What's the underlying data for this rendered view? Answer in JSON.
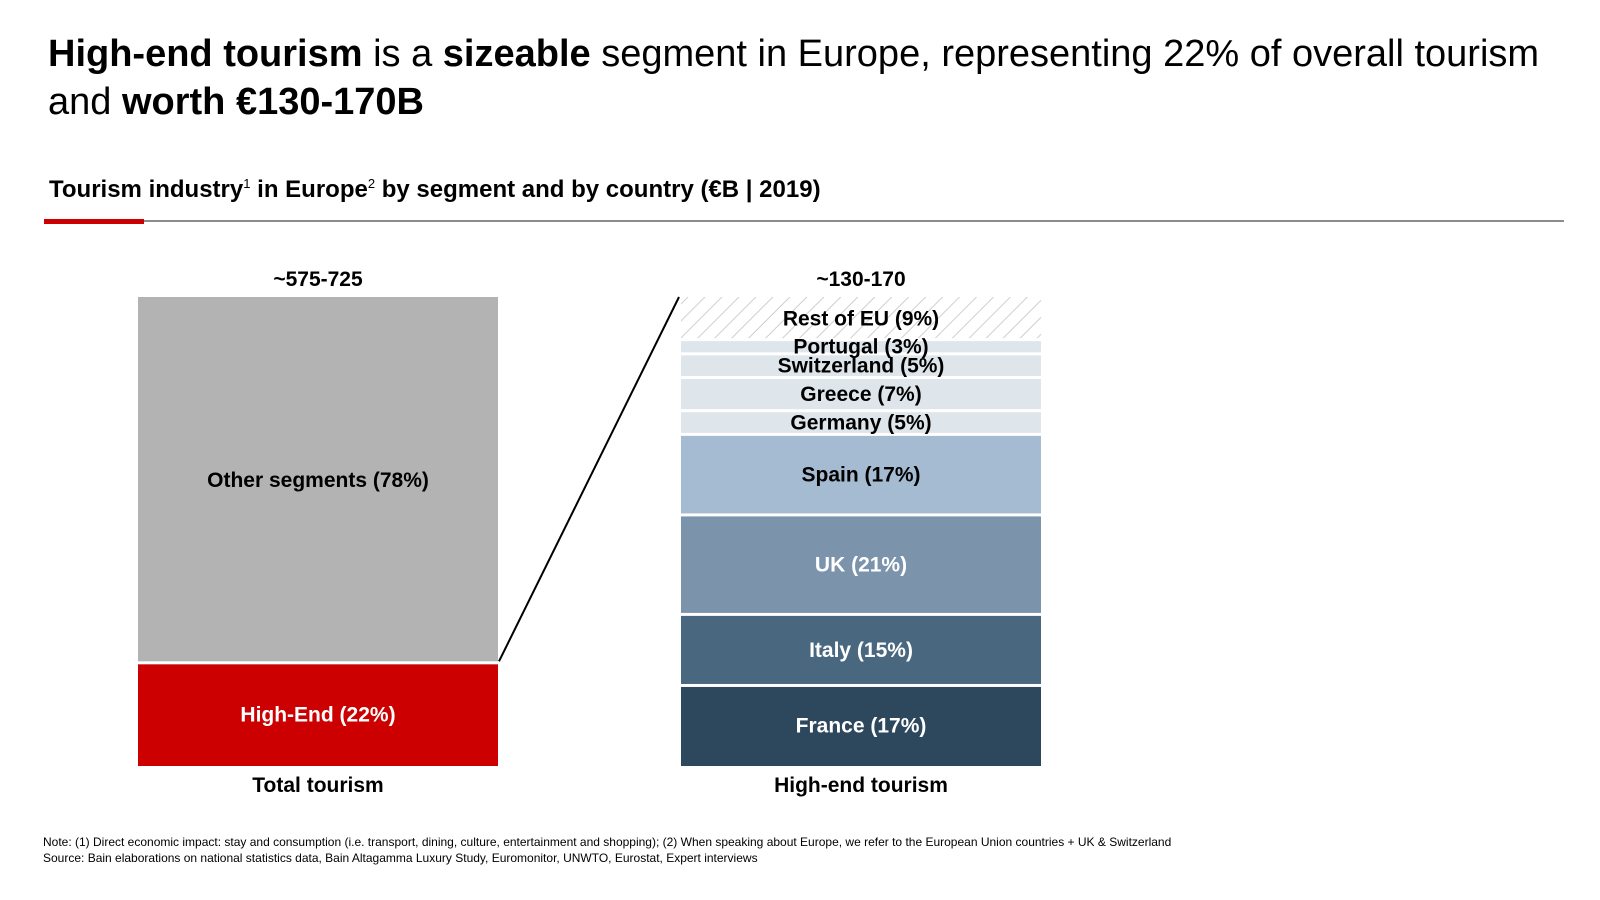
{
  "headline": {
    "p1": "High-end tourism",
    "p2": " is a ",
    "p3": "sizeable",
    "p4": " segment in Europe, representing 22% of overall tourism and ",
    "p5": "worth €130-170B"
  },
  "subtitle": {
    "t1": "Tourism industry",
    "sup1": "1",
    "t2": " in Europe",
    "sup2": "2",
    "t3": " by segment and by country (€B | 2019)"
  },
  "colors": {
    "accent": "#cc0000",
    "other_segments": "#b3b3b3",
    "high_end": "#cc0000",
    "small_countries": "#dee6eb",
    "rest_hatch": "#d0d0d0",
    "spain": "#a5bbd2",
    "uk": "#7b93ab",
    "italy": "#4a6780",
    "france": "#2d475c",
    "rule": "#8c8c8c"
  },
  "chart_data": {
    "type": "bar",
    "subtype": "stacked-100 (marimekko-style breakdown)",
    "bars": [
      {
        "category": "Total tourism",
        "total_label": "~575-725",
        "segments": [
          {
            "name": "High-End (22%)",
            "value": 22,
            "color_key": "high_end",
            "text_color": "#ffffff"
          },
          {
            "name": "Other segments (78%)",
            "value": 78,
            "color_key": "other_segments",
            "text_color": "#000000"
          }
        ]
      },
      {
        "category": "High-end tourism",
        "total_label": "~130-170",
        "segments": [
          {
            "name": "France  (17%)",
            "value": 17,
            "color_key": "france",
            "text_color": "#ffffff"
          },
          {
            "name": "Italy (15%)",
            "value": 15,
            "color_key": "italy",
            "text_color": "#ffffff"
          },
          {
            "name": "UK (21%)",
            "value": 21,
            "color_key": "uk",
            "text_color": "#ffffff"
          },
          {
            "name": "Spain (17%)",
            "value": 17,
            "color_key": "spain",
            "text_color": "#000000"
          },
          {
            "name": "Germany (5%)",
            "value": 5,
            "color_key": "small_countries",
            "text_color": "#000000"
          },
          {
            "name": "Greece (7%)",
            "value": 7,
            "color_key": "small_countries",
            "text_color": "#000000"
          },
          {
            "name": "Switzerland (5%)",
            "value": 5,
            "color_key": "small_countries",
            "text_color": "#000000"
          },
          {
            "name": "Portugal (3%)",
            "value": 3,
            "color_key": "small_countries",
            "text_color": "#000000"
          },
          {
            "name": "Rest of EU (9%)",
            "value": 9,
            "color_key": "rest_hatch",
            "text_color": "#000000",
            "hatched": true
          }
        ]
      }
    ],
    "unit": "%",
    "connector": "High-End segment expanded into country breakdown"
  },
  "footnotes": {
    "note": "Note: (1) Direct economic impact: stay and consumption (i.e. transport, dining, culture, entertainment and shopping); (2) When speaking about Europe, we refer to the European Union countries + UK & Switzerland",
    "source": "Source: Bain elaborations on national statistics data, Bain Altagamma Luxury Study, Euromonitor, UNWTO, Eurostat, Expert interviews"
  }
}
